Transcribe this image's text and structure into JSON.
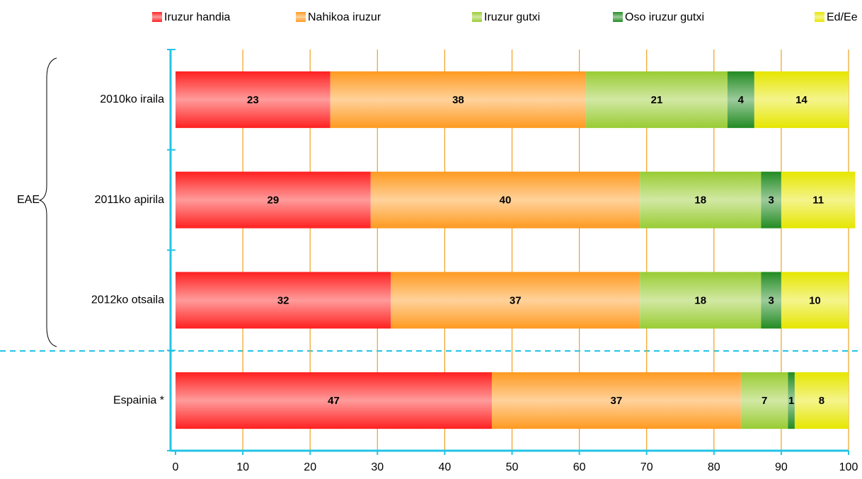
{
  "chart_data": {
    "type": "stacked_barh",
    "categories": [
      "2010ko iraila",
      "2011ko apirila",
      "2012ko otsaila",
      "Espainia *"
    ],
    "group_label": "EAE",
    "series": [
      {
        "name": "Iruzur handia",
        "color": "#ff2020",
        "values": [
          23,
          29,
          32,
          47
        ]
      },
      {
        "name": "Nahikoa iruzur",
        "color": "#ff9a20",
        "values": [
          38,
          40,
          37,
          37
        ]
      },
      {
        "name": "Iruzur gutxi",
        "color": "#99cc33",
        "values": [
          21,
          18,
          18,
          7
        ]
      },
      {
        "name": "Oso iruzur gutxi",
        "color": "#228b22",
        "values": [
          4,
          3,
          3,
          1
        ]
      },
      {
        "name": "Ed/Ee",
        "color": "#e6e600",
        "values": [
          14,
          11,
          10,
          8
        ]
      }
    ],
    "xlim": [
      0,
      100
    ],
    "xticks": [
      0,
      10,
      20,
      30,
      40,
      50,
      60,
      70,
      80,
      90,
      100
    ],
    "grid": true,
    "legend": "top"
  }
}
